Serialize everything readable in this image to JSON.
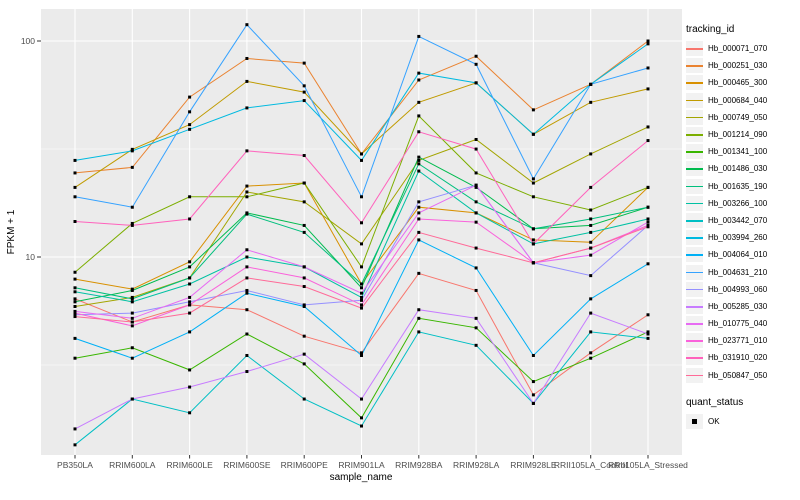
{
  "figure": {
    "bg": "#FFFFFF",
    "panel_bg": "#EBEBEB",
    "grid_color": "#FFFFFF",
    "tick_color": "#333333",
    "tick_label_color": "#4D4D4D",
    "point_color": "#000000"
  },
  "axes": {
    "x_title": "sample_name",
    "y_title": "FPKM + 1",
    "y_ticks": [
      {
        "label": "10",
        "value": 10
      },
      {
        "label": "100",
        "value": 100
      }
    ],
    "y_minor": [
      3.1623,
      31.623
    ]
  },
  "legend": {
    "tracking_title": "tracking_id",
    "quant_title": "quant_status",
    "quant_items": [
      {
        "label": "OK",
        "marker": "black-square"
      }
    ]
  },
  "chart_data": {
    "type": "line",
    "title": "",
    "xlabel": "sample_name",
    "ylabel": "FPKM + 1",
    "y_scale": "log10",
    "ylim": [
      1.2,
      139
    ],
    "grid": true,
    "legend_position": "right",
    "point_marker": "small black square (quant_status OK)",
    "categories": [
      "PB350LA",
      "RRIM600LA",
      "RRIM600LE",
      "RRIM600SE",
      "RRIM600PE",
      "RRIM901LA",
      "RRIM928BA",
      "RRIM928LA",
      "RRIM928LE",
      "RRII105LA_Control",
      "RRII105LA_Stressed"
    ],
    "series": [
      {
        "name": "Hb_000071_070",
        "color": "#F8766D",
        "values": [
          6.4,
          5.0,
          6.0,
          5.7,
          4.3,
          3.6,
          8.4,
          7.0,
          2.3,
          3.6,
          5.4
        ]
      },
      {
        "name": "Hb_000251_030",
        "color": "#EA8331",
        "values": [
          24.5,
          26,
          55,
          83,
          79,
          30,
          66,
          85,
          48,
          63,
          100
        ]
      },
      {
        "name": "Hb_000465_300",
        "color": "#D89000",
        "values": [
          7.9,
          7.1,
          9.5,
          21.3,
          22,
          7.5,
          17,
          16,
          12,
          11.7,
          21
        ]
      },
      {
        "name": "Hb_000684_040",
        "color": "#C09B00",
        "values": [
          21,
          31.5,
          41,
          65,
          58,
          30,
          52,
          64,
          37,
          52,
          60
        ]
      },
      {
        "name": "Hb_000749_050",
        "color": "#A3A500",
        "values": [
          5.9,
          6.5,
          8.0,
          20,
          18,
          11.5,
          28,
          35,
          22,
          30,
          40
        ]
      },
      {
        "name": "Hb_001214_090",
        "color": "#7CAE00",
        "values": [
          8.5,
          14.3,
          19,
          19,
          22,
          9.0,
          45,
          24.5,
          19,
          16.5,
          21
        ]
      },
      {
        "name": "Hb_001341_100",
        "color": "#39B600",
        "values": [
          3.4,
          3.8,
          3.0,
          4.4,
          3.2,
          1.8,
          5.2,
          4.7,
          2.65,
          3.4,
          4.5
        ]
      },
      {
        "name": "Hb_001486_030",
        "color": "#00BB4E",
        "values": [
          6.2,
          7.0,
          9.0,
          16,
          14,
          7.2,
          29,
          21,
          13.5,
          14,
          17
        ]
      },
      {
        "name": "Hb_001635_190",
        "color": "#00BF7D",
        "values": [
          7.2,
          6.4,
          8.0,
          15.8,
          13,
          7.5,
          27,
          18,
          13.5,
          15,
          17
        ]
      },
      {
        "name": "Hb_003266_100",
        "color": "#00C1A3",
        "values": [
          6.9,
          6.2,
          7.5,
          10,
          9.0,
          6.5,
          25,
          16,
          11.5,
          13,
          15
        ]
      },
      {
        "name": "Hb_003442_070",
        "color": "#00BFC4",
        "values": [
          1.35,
          2.2,
          1.9,
          3.5,
          2.2,
          1.65,
          4.5,
          3.9,
          2.1,
          4.5,
          4.2
        ]
      },
      {
        "name": "Hb_003994_260",
        "color": "#00BAE0",
        "values": [
          28,
          31,
          39,
          49,
          53,
          28,
          71,
          64,
          37,
          63,
          97
        ]
      },
      {
        "name": "Hb_004064_010",
        "color": "#00B0F6",
        "values": [
          4.2,
          3.4,
          4.5,
          6.8,
          5.9,
          3.5,
          12,
          8.9,
          3.5,
          6.4,
          9.3
        ]
      },
      {
        "name": "Hb_004631_210",
        "color": "#35A2FF",
        "values": [
          19,
          17,
          47,
          119,
          62,
          19,
          105,
          78,
          23,
          63,
          75
        ]
      },
      {
        "name": "Hb_004993_060",
        "color": "#9590FF",
        "values": [
          5.4,
          5.5,
          6.2,
          7.0,
          6.0,
          6.3,
          18,
          21.5,
          9.4,
          8.2,
          14
        ]
      },
      {
        "name": "Hb_005285_030",
        "color": "#C77CFF",
        "values": [
          1.6,
          2.2,
          2.5,
          2.95,
          3.55,
          2.2,
          5.7,
          5.2,
          2.1,
          5.5,
          4.4
        ]
      },
      {
        "name": "Hb_010775_040",
        "color": "#E76BF3",
        "values": [
          5.6,
          5.2,
          6.5,
          10.8,
          9.0,
          6.8,
          16,
          21.5,
          9.4,
          10.2,
          14.5
        ]
      },
      {
        "name": "Hb_023771_010",
        "color": "#FA62DB",
        "values": [
          5.5,
          4.8,
          6.0,
          9.0,
          8.0,
          6.0,
          15,
          14.5,
          9.4,
          11,
          14
        ]
      },
      {
        "name": "Hb_031910_020",
        "color": "#FF62BC",
        "values": [
          14.6,
          14,
          15,
          31,
          29.5,
          14.4,
          38,
          31.6,
          11.5,
          21,
          34.6
        ]
      },
      {
        "name": "Hb_050847_050",
        "color": "#FF6A98",
        "values": [
          5.3,
          5.0,
          5.5,
          8.0,
          7.3,
          5.8,
          13,
          11,
          9.4,
          11,
          13.8
        ]
      }
    ]
  }
}
